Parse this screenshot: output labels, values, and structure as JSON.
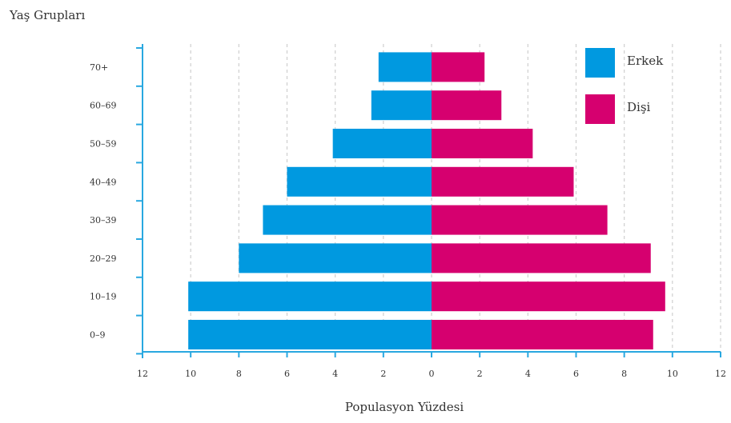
{
  "chart_data": {
    "type": "bar",
    "orientation": "horizontal",
    "title": "",
    "ylabel": "Yaş Grupları",
    "xlabel": "Populasyon Yüzdesi",
    "categories": [
      "0–9",
      "10–19",
      "20–29",
      "30–39",
      "40–49",
      "50–59",
      "60–69",
      "70+"
    ],
    "series": [
      {
        "name": "Erkek",
        "color": "#0099e0",
        "side": "left",
        "values": [
          10.1,
          10.1,
          8.0,
          7.0,
          6.0,
          4.1,
          2.5,
          2.2
        ]
      },
      {
        "name": "Dişi",
        "color": "#d6006f",
        "side": "right",
        "values": [
          9.2,
          9.7,
          9.1,
          7.3,
          5.9,
          4.2,
          2.9,
          2.2
        ]
      }
    ],
    "xlim": [
      -12,
      12
    ],
    "xticks": [
      -12,
      -10,
      -8,
      -6,
      -4,
      -2,
      0,
      2,
      4,
      6,
      8,
      10,
      12
    ],
    "xtick_labels": [
      "12",
      "10",
      "8",
      "6",
      "4",
      "2",
      "0",
      "2",
      "4",
      "6",
      "8",
      "10",
      "12"
    ],
    "grid": "vertical dashed",
    "legend": "top-right",
    "axis_color": "#29a8e0"
  }
}
